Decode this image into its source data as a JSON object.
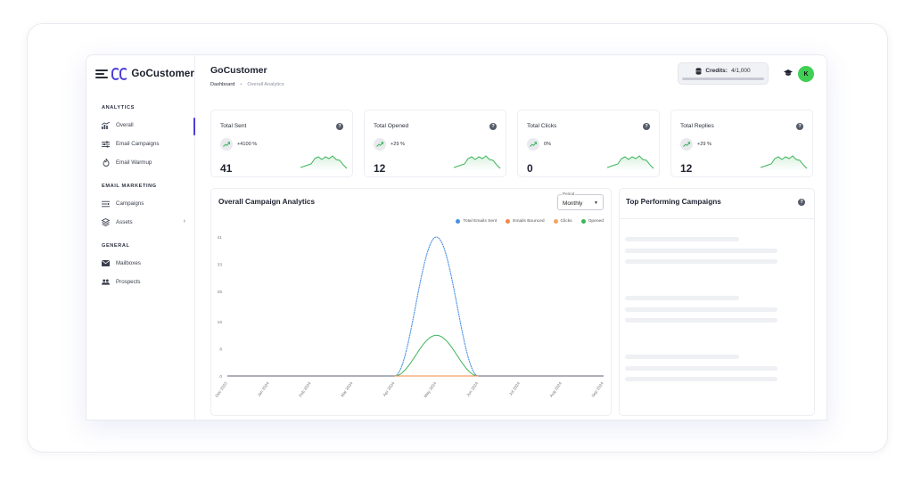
{
  "colors": {
    "brand": "#4d3fd6",
    "sent": "#4a90e2",
    "bounced": "#f08a45",
    "clicks": "#f5a55a",
    "opened": "#3cb55a",
    "avatar": "#3fcf55"
  },
  "sidebar": {
    "logo_text": "GoCustomer",
    "sections": [
      {
        "title": "ANALYTICS",
        "items": [
          {
            "label": "Overall",
            "icon": "bar-chart-icon",
            "active": true
          },
          {
            "label": "Email Campaigns",
            "icon": "sliders-icon"
          },
          {
            "label": "Email Warmup",
            "icon": "flame-icon"
          }
        ]
      },
      {
        "title": "EMAIL MARKETING",
        "items": [
          {
            "label": "Campaigns",
            "icon": "list-icon"
          },
          {
            "label": "Assets",
            "icon": "layers-icon",
            "has_chevron": true
          }
        ]
      },
      {
        "title": "GENERAL",
        "items": [
          {
            "label": "Mailboxes",
            "icon": "mail-icon"
          },
          {
            "label": "Prospects",
            "icon": "people-icon"
          }
        ]
      }
    ]
  },
  "header": {
    "title": "GoCustomer",
    "breadcrumb": {
      "root": "Dashboard",
      "current": "Overall Analytics"
    },
    "credits_label": "Credits:",
    "credits_value": "4/1,000",
    "avatar_initial": "K"
  },
  "stats": [
    {
      "title": "Total Sent",
      "change": "+4100 %",
      "value": "41"
    },
    {
      "title": "Total Opened",
      "change": "+29 %",
      "value": "12"
    },
    {
      "title": "Total Clicks",
      "change": "0%",
      "value": "0"
    },
    {
      "title": "Total Replies",
      "change": "+29 %",
      "value": "12"
    }
  ],
  "campaign_chart": {
    "title": "Overall Campaign Analytics",
    "period_label": "Period",
    "period_value": "Monthly"
  },
  "top_campaigns": {
    "title": "Top Performing Campaigns"
  },
  "chart_data": {
    "type": "line",
    "title": "Overall Campaign Analytics",
    "categories": [
      "Dec 2023",
      "Jan 2024",
      "Feb 2024",
      "Mar 2024",
      "Apr 2024",
      "May 2024",
      "Jun 2024",
      "Jul 2024",
      "Aug 2024",
      "Sep 2024"
    ],
    "y_ticks": [
      "0",
      "8",
      "16",
      "25",
      "33",
      "41"
    ],
    "ylim": [
      0,
      41
    ],
    "legend_position": "top-right",
    "series": [
      {
        "name": "Total Emails Sent",
        "values": [
          0,
          0,
          0,
          0,
          0,
          41,
          0,
          0,
          0,
          0
        ]
      },
      {
        "name": "Emails Bounced",
        "values": [
          0,
          0,
          0,
          0,
          0,
          0,
          0,
          0,
          0,
          0
        ]
      },
      {
        "name": "Clicks",
        "values": [
          0,
          0,
          0,
          0,
          0,
          0,
          0,
          0,
          0,
          0
        ]
      },
      {
        "name": "Opened",
        "values": [
          0,
          0,
          0,
          0,
          0,
          12,
          0,
          0,
          0,
          0
        ]
      }
    ]
  }
}
